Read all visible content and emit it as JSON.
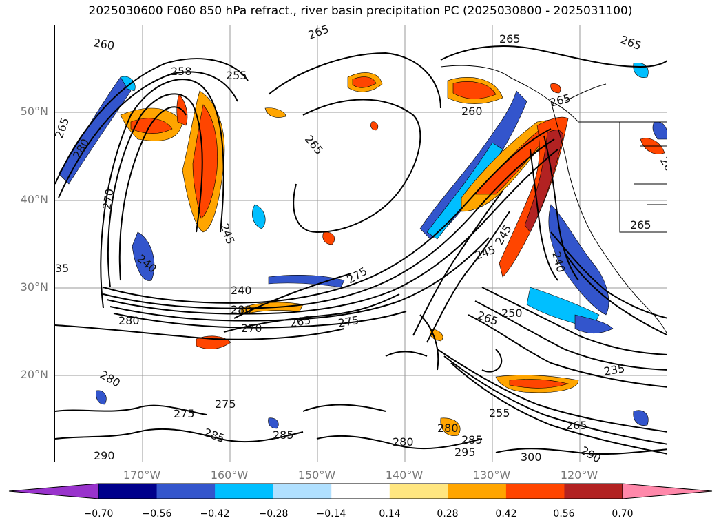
{
  "title": "2025030600 F060 850 hPa refract., river basin precipitation PC (2025030800 - 2025031100)",
  "lat_labels": [
    "50°N",
    "40°N",
    "30°N",
    "20°N"
  ],
  "lon_labels": [
    "170°W",
    "160°W",
    "150°W",
    "140°W",
    "130°W",
    "120°W"
  ],
  "colorbar": {
    "ticks": [
      "−0.70",
      "−0.56",
      "−0.42",
      "−0.28",
      "−0.14",
      "0.14",
      "0.28",
      "0.42",
      "0.56",
      "0.70"
    ],
    "colors": [
      "#9933cc",
      "#00008b",
      "#3355cc",
      "#00bfff",
      "#b0e0ff",
      "#ffffff",
      "#ffe680",
      "#ffa500",
      "#ff4500",
      "#b22222",
      "#ff88aa"
    ]
  },
  "contour_labels": [
    {
      "text": "260",
      "rot": 10
    },
    {
      "text": "265",
      "rot": -20
    },
    {
      "text": "255",
      "rot": 0
    },
    {
      "text": "265",
      "rot": 0
    },
    {
      "text": "265",
      "rot": 20
    },
    {
      "text": "265",
      "rot": -70
    },
    {
      "text": "280",
      "rot": -60
    },
    {
      "text": "258",
      "rot": 0
    },
    {
      "text": "260",
      "rot": 0
    },
    {
      "text": "265",
      "rot": -15
    },
    {
      "text": "265",
      "rot": 50
    },
    {
      "text": "270",
      "rot": -80
    },
    {
      "text": "245",
      "rot": 70
    },
    {
      "text": "240",
      "rot": 40
    },
    {
      "text": "240",
      "rot": 0
    },
    {
      "text": "280",
      "rot": 0
    },
    {
      "text": "280",
      "rot": 0
    },
    {
      "text": "270",
      "rot": 0
    },
    {
      "text": "265",
      "rot": -10
    },
    {
      "text": "275",
      "rot": -10
    },
    {
      "text": "275",
      "rot": -30
    },
    {
      "text": "245",
      "rot": -20
    },
    {
      "text": "245",
      "rot": -60
    },
    {
      "text": "240",
      "rot": 75
    },
    {
      "text": "250",
      "rot": 0
    },
    {
      "text": "265",
      "rot": 20
    },
    {
      "text": "265",
      "rot": 0
    },
    {
      "text": "265",
      "rot": 60
    },
    {
      "text": "235",
      "rot": -10
    },
    {
      "text": "255",
      "rot": 0
    },
    {
      "text": "265",
      "rot": 0
    },
    {
      "text": "280",
      "rot": 30
    },
    {
      "text": "280",
      "rot": 0
    },
    {
      "text": "285",
      "rot": 0
    },
    {
      "text": "285",
      "rot": 20
    },
    {
      "text": "285",
      "rot": 0
    },
    {
      "text": "275",
      "rot": 0
    },
    {
      "text": "275",
      "rot": 0
    },
    {
      "text": "290",
      "rot": 0
    },
    {
      "text": "295",
      "rot": 0
    },
    {
      "text": "300",
      "rot": 0
    },
    {
      "text": "290",
      "rot": 30
    },
    {
      "text": "280",
      "rot": 0
    },
    {
      "text": "35",
      "rot": 0
    }
  ]
}
